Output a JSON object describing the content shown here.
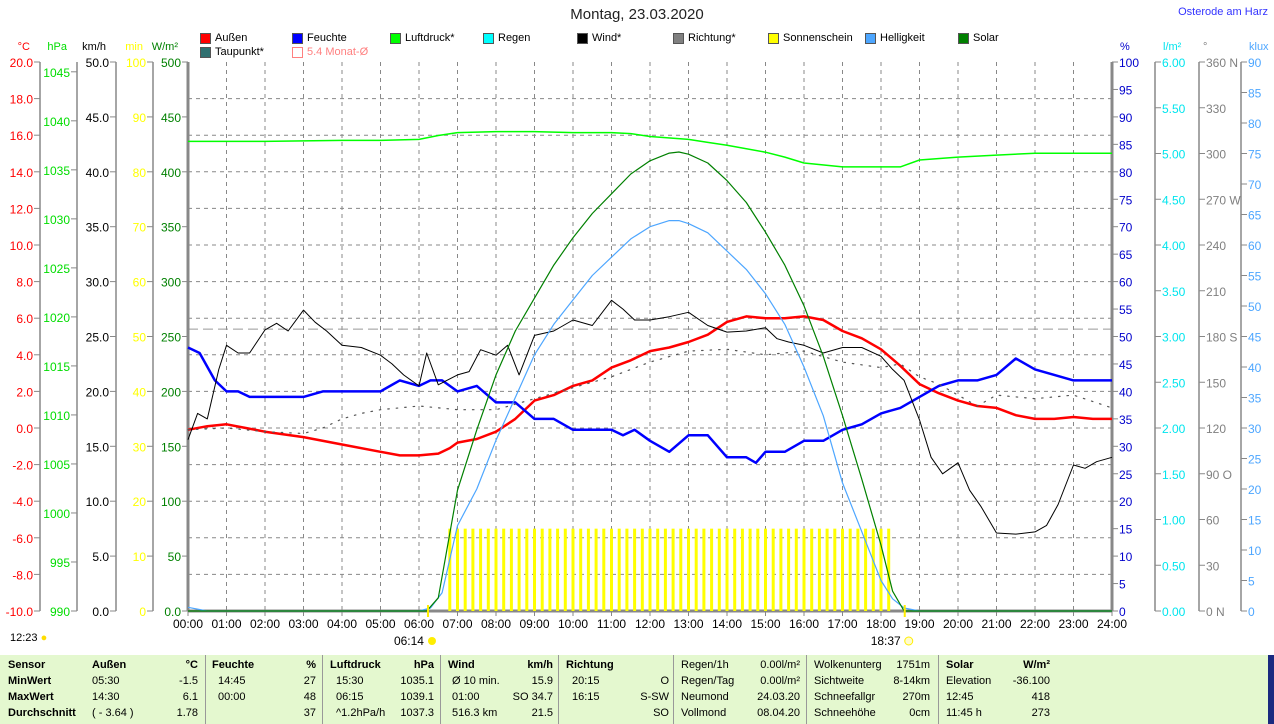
{
  "header": {
    "title": "Montag, 23.03.2020",
    "location": "Osterode am Harz",
    "clock": "12:23"
  },
  "legend": [
    {
      "label": "Außen",
      "color": "#ff0000"
    },
    {
      "label": "Feuchte",
      "color": "#0000ff"
    },
    {
      "label": "Luftdruck*",
      "color": "#00ff00"
    },
    {
      "label": "Regen",
      "color": "#00ffff"
    },
    {
      "label": "Wind*",
      "color": "#000000"
    },
    {
      "label": "Richtung*",
      "color": "#808080"
    },
    {
      "label": "Sonnenschein",
      "color": "#ffff00"
    },
    {
      "label": "Helligkeit",
      "color": "#4da6ff"
    },
    {
      "label": "Solar",
      "color": "#008000"
    },
    {
      "label": "Taupunkt*",
      "color": "#307070"
    },
    {
      "label": "5.4 Monat-Ø",
      "color": "#ff8080"
    }
  ],
  "chart_data": {
    "type": "line",
    "title": "Montag, 23.03.2020",
    "x_ticks": [
      "00:00",
      "01:00",
      "02:00",
      "03:00",
      "04:00",
      "05:00",
      "06:00",
      "07:00",
      "08:00",
      "09:00",
      "10:00",
      "11:00",
      "12:00",
      "13:00",
      "14:00",
      "15:00",
      "16:00",
      "17:00",
      "18:00",
      "19:00",
      "20:00",
      "21:00",
      "22:00",
      "23:00",
      "24:00"
    ],
    "xlim": [
      0,
      24
    ],
    "grid": true,
    "sunrise": "06:14",
    "sunset": "18:37",
    "axes": {
      "temp": {
        "unit": "°C",
        "min": -10,
        "max": 20,
        "ticks": [
          "20.0",
          "18.0",
          "16.0",
          "14.0",
          "12.0",
          "10.0",
          "8.0",
          "6.0",
          "4.0",
          "2.0",
          "0.0",
          "-2.0",
          "-4.0",
          "-6.0",
          "-8.0",
          "-10.0"
        ],
        "color": "#ff0000"
      },
      "pressure": {
        "unit": "hPa",
        "min": 990,
        "max": 1046,
        "ticks": [
          "1045",
          "1040",
          "1035",
          "1030",
          "1025",
          "1020",
          "1015",
          "1010",
          "1005",
          "1000",
          "995",
          "990"
        ],
        "color": "#00dd00"
      },
      "wind": {
        "unit": "km/h",
        "min": 0,
        "max": 50,
        "ticks": [
          "50.0",
          "45.0",
          "40.0",
          "35.0",
          "30.0",
          "25.0",
          "20.0",
          "15.0",
          "10.0",
          "5.0",
          "0.0"
        ],
        "color": "#000000"
      },
      "sun": {
        "unit": "min",
        "min": 0,
        "max": 100,
        "ticks": [
          "100",
          "90",
          "80",
          "70",
          "60",
          "50",
          "40",
          "30",
          "20",
          "10",
          "0"
        ],
        "color": "#ffff00"
      },
      "solar": {
        "unit": "W/m²",
        "min": 0,
        "max": 500,
        "ticks": [
          "500",
          "450",
          "400",
          "350",
          "300",
          "250",
          "200",
          "150",
          "100",
          "50",
          "0.0"
        ],
        "color": "#008000"
      },
      "humidity": {
        "unit": "%",
        "min": 0,
        "max": 100,
        "ticks": [
          "100",
          "95",
          "90",
          "85",
          "80",
          "75",
          "70",
          "65",
          "60",
          "55",
          "50",
          "45",
          "40",
          "35",
          "30",
          "25",
          "20",
          "15",
          "10",
          "5",
          "0"
        ],
        "color": "#0000cc"
      },
      "rain": {
        "unit": "l/m²",
        "min": 0,
        "max": 6,
        "ticks": [
          "6.00",
          "5.50",
          "5.00",
          "4.50",
          "4.00",
          "3.50",
          "3.00",
          "2.50",
          "2.00",
          "1.50",
          "1.00",
          "0.50",
          "0.00"
        ],
        "color": "#00e5ee"
      },
      "direction": {
        "unit": "°",
        "min": 0,
        "max": 360,
        "ticks": [
          "360 N",
          "330",
          "300",
          "270 W",
          "240",
          "210",
          "180 S",
          "150",
          "120",
          "90 O",
          "60",
          "30",
          "0 N"
        ],
        "color": "#808080"
      },
      "lux": {
        "unit": "klux",
        "min": 0,
        "max": 90,
        "ticks": [
          "90",
          "85",
          "80",
          "75",
          "70",
          "65",
          "60",
          "55",
          "50",
          "45",
          "40",
          "35",
          "30",
          "25",
          "20",
          "15",
          "10",
          "5",
          "0"
        ],
        "color": "#4da6ff"
      }
    },
    "month_avg_temp": 5.4,
    "series": [
      {
        "name": "Außen",
        "axis": "temp",
        "color": "#ff0000",
        "width": 2.5,
        "x": [
          0,
          0.5,
          1,
          1.5,
          2,
          3,
          4,
          5,
          5.5,
          6,
          6.5,
          6.8,
          7,
          7.5,
          8,
          8.5,
          9,
          9.5,
          10,
          10.5,
          11,
          11.5,
          12,
          12.5,
          13,
          13.5,
          14,
          14.5,
          15,
          15.5,
          16,
          16.5,
          17,
          17.5,
          18,
          18.5,
          19,
          19.5,
          20,
          20.5,
          21,
          21.5,
          22,
          22.5,
          23,
          23.5,
          24
        ],
        "y": [
          -0.1,
          0.1,
          0.2,
          0,
          -0.2,
          -0.5,
          -0.9,
          -1.3,
          -1.5,
          -1.5,
          -1.4,
          -1.1,
          -0.8,
          -0.6,
          -0.2,
          0.5,
          1.5,
          1.8,
          2.3,
          2.6,
          3.3,
          3.7,
          4.2,
          4.4,
          4.7,
          5.1,
          5.8,
          6.1,
          6.0,
          6.0,
          6.1,
          5.9,
          5.3,
          4.9,
          4.3,
          3.4,
          2.4,
          1.9,
          1.5,
          1.2,
          1.1,
          0.7,
          0.5,
          0.5,
          0.6,
          0.5,
          0.5
        ]
      },
      {
        "name": "Feuchte",
        "axis": "humidity",
        "color": "#0000ff",
        "width": 2.5,
        "x": [
          0,
          0.3,
          0.7,
          1,
          1.3,
          1.6,
          2,
          3,
          3.5,
          4,
          5,
          5.5,
          6,
          6.3,
          6.6,
          7,
          7.5,
          8,
          8.5,
          9,
          9.5,
          10,
          11,
          11.3,
          11.6,
          12,
          12.5,
          13,
          13.5,
          14,
          14.5,
          14.75,
          15,
          15.5,
          16,
          16.5,
          17,
          17.5,
          18,
          18.5,
          19,
          19.5,
          20,
          20.5,
          21,
          21.5,
          22,
          22.5,
          23,
          24
        ],
        "y": [
          48,
          47,
          42,
          40,
          40,
          39,
          39,
          39,
          40,
          40,
          40,
          42,
          41,
          42,
          42,
          40,
          41,
          38,
          38,
          35,
          35,
          33,
          33,
          32,
          33,
          31,
          29,
          32,
          32,
          28,
          28,
          27,
          29,
          29,
          31,
          31,
          33,
          34,
          36,
          37,
          39,
          41,
          42,
          42,
          43,
          46,
          44,
          43,
          42,
          42
        ]
      },
      {
        "name": "Luftdruck*",
        "axis": "pressure",
        "color": "#00ff00",
        "width": 1.5,
        "x": [
          0,
          2,
          4,
          5,
          6,
          6.5,
          7,
          8,
          9,
          10,
          11,
          11.5,
          12,
          13,
          13.5,
          14,
          15,
          15.5,
          16,
          17,
          18,
          18.5,
          19,
          20,
          21,
          22,
          24
        ],
        "y": [
          1037.9,
          1037.9,
          1038.0,
          1038.0,
          1038.1,
          1038.5,
          1038.8,
          1038.9,
          1038.9,
          1038.8,
          1038.8,
          1038.7,
          1038.4,
          1038.1,
          1037.8,
          1037.5,
          1036.8,
          1036.3,
          1035.7,
          1035.3,
          1035.3,
          1035.3,
          1036.0,
          1036.3,
          1036.5,
          1036.7,
          1036.7
        ]
      },
      {
        "name": "Wind*",
        "axis": "wind",
        "color": "#000000",
        "width": 1,
        "x": [
          0,
          0.25,
          0.5,
          0.8,
          1,
          1.3,
          1.6,
          2,
          2.3,
          2.6,
          3,
          3.3,
          3.6,
          4,
          4.5,
          5,
          5.3,
          5.6,
          6,
          6.2,
          6.5,
          7,
          7.3,
          7.6,
          8,
          8.3,
          8.6,
          9,
          9.5,
          10,
          10.5,
          11,
          11.3,
          11.6,
          12,
          12.5,
          13,
          13.5,
          14,
          14.5,
          15,
          15.3,
          15.6,
          16,
          16.5,
          17,
          17.5,
          18,
          18.3,
          18.6,
          19,
          19.3,
          19.6,
          20,
          20.3,
          20.6,
          21,
          21.5,
          22,
          22.3,
          22.6,
          23,
          23.3,
          23.6,
          24
        ],
        "y": [
          15.6,
          18,
          17.5,
          22,
          24.2,
          23.5,
          23.5,
          25.6,
          26.2,
          25.5,
          27.4,
          26.3,
          25.5,
          24.2,
          24,
          23.3,
          22.5,
          21.5,
          20.5,
          23.5,
          20.6,
          21.5,
          21.8,
          23.8,
          23.3,
          24.2,
          21.5,
          25.1,
          25.5,
          26.5,
          26,
          28.3,
          27.5,
          26.5,
          26.5,
          26.8,
          27.2,
          26,
          25.4,
          25.5,
          25.8,
          24.8,
          24.5,
          24.2,
          23.5,
          24,
          24,
          23.2,
          22,
          21,
          17.4,
          14,
          12.5,
          13.5,
          11,
          9.5,
          7.1,
          7,
          7.2,
          7.8,
          9.7,
          13.3,
          13,
          13.6,
          14
        ]
      },
      {
        "name": "Taupunkt*",
        "axis": "temp",
        "color": "#555555",
        "width": 1.2,
        "dotted": true,
        "x": [
          0,
          1,
          2,
          3,
          3.5,
          4,
          4.5,
          5,
          6,
          7,
          8,
          9,
          10,
          11,
          12,
          13,
          14,
          15,
          16,
          17,
          18,
          18.5,
          19,
          19.5,
          20,
          20.5,
          21,
          22,
          23,
          24
        ],
        "y": [
          -0.1,
          0,
          -0.2,
          -0.3,
          0,
          0.5,
          0.8,
          1.0,
          1.2,
          1.0,
          1.0,
          1.6,
          2.2,
          2.8,
          3.6,
          4.2,
          4.3,
          4.0,
          4.2,
          3.6,
          3.3,
          3.5,
          2.8,
          2.4,
          1.8,
          1.2,
          1.8,
          1.6,
          1.8,
          1.1
        ]
      },
      {
        "name": "Helligkeit",
        "axis": "lux",
        "color": "#4da6ff",
        "width": 1.2,
        "x": [
          0,
          0.5,
          6,
          6.3,
          6.6,
          7,
          7.5,
          8,
          8.5,
          9,
          9.5,
          10,
          10.5,
          11,
          11.5,
          12,
          12.5,
          12.75,
          13,
          13.5,
          14,
          14.5,
          15,
          15.5,
          16,
          16.5,
          17,
          17.5,
          18,
          18.3,
          18.6,
          19,
          24
        ],
        "y": [
          0.6,
          0,
          0,
          0.5,
          3,
          14,
          20,
          28,
          35,
          42,
          47,
          51,
          55,
          58,
          61,
          63,
          64,
          64,
          63.5,
          62,
          59,
          56,
          52,
          47,
          40,
          32,
          21,
          13,
          5,
          2,
          0.5,
          0,
          0
        ]
      },
      {
        "name": "Solar",
        "axis": "solar",
        "color": "#008000",
        "width": 1.2,
        "x": [
          0,
          6.2,
          6.5,
          7,
          7.5,
          8,
          8.5,
          9,
          9.5,
          10,
          10.5,
          11,
          11.5,
          12,
          12.5,
          12.75,
          13,
          13.5,
          14,
          14.5,
          15,
          15.5,
          16,
          16.5,
          17,
          17.5,
          18,
          18.3,
          18.6,
          24
        ],
        "y": [
          0,
          0,
          12,
          110,
          165,
          215,
          255,
          285,
          315,
          340,
          362,
          380,
          398,
          410,
          417,
          418,
          416,
          408,
          392,
          372,
          345,
          315,
          278,
          232,
          178,
          120,
          60,
          18,
          0,
          0
        ]
      }
    ],
    "sunshine": {
      "axis": "sun",
      "color": "#ffff00",
      "x_start": 6.8,
      "x_end": 18.3,
      "interval_h": 0.2,
      "value": 15
    }
  },
  "stats": {
    "headers": {
      "sensor": "Sensor",
      "aussen": "Außen",
      "aussen_unit": "°C",
      "feuchte": "Feuchte",
      "feuchte_unit": "%",
      "luftdruck": "Luftdruck",
      "luftdruck_unit": "hPa",
      "wind": "Wind",
      "wind_unit": "km/h",
      "richtung": "Richtung",
      "solar": "Solar",
      "solar_unit": "W/m²"
    },
    "rows": [
      {
        "label": "MinWert",
        "aussen_t": "05:30",
        "aussen_v": "-1.5",
        "feuchte_t": "14:45",
        "feuchte_v": "27",
        "druck_t": "15:30",
        "druck_v": "1035.1",
        "wind_t": "Ø 10 min.",
        "wind_v": "15.9",
        "richt_t": "20:15",
        "richt_v": "O"
      },
      {
        "label": "MaxWert",
        "aussen_t": "14:30",
        "aussen_v": "6.1",
        "feuchte_t": "00:00",
        "feuchte_v": "48",
        "druck_t": "06:15",
        "druck_v": "1039.1",
        "wind_t": "01:00",
        "wind_v": "SO 34.7",
        "richt_t": "16:15",
        "richt_v": "S-SW"
      },
      {
        "label": "Durchschnitt",
        "aussen_t": "( - 3.64 )",
        "aussen_v": "1.78",
        "feuchte_t": "",
        "feuchte_v": "37",
        "druck_t": "^1.2hPa/h",
        "druck_v": "1037.3",
        "wind_t": "516.3 km",
        "wind_v": "21.5",
        "richt_t": "",
        "richt_v": "SO"
      }
    ],
    "misc1": [
      {
        "k": "Regen/1h",
        "v": "0.00l/m²"
      },
      {
        "k": "Regen/Tag",
        "v": "0.00l/m²"
      },
      {
        "k": "Neumond",
        "v": "24.03.20"
      },
      {
        "k": "Vollmond",
        "v": "08.04.20"
      }
    ],
    "misc2": [
      {
        "k": "Wolkenunterg",
        "v": "1751m"
      },
      {
        "k": "Sichtweite",
        "v": "8-14km"
      },
      {
        "k": "Schneefallgr",
        "v": "270m"
      },
      {
        "k": "Schneehöhe",
        "v": "0cm"
      }
    ],
    "solar": [
      {
        "k": "Elevation",
        "v": "-36.100"
      },
      {
        "k": "12:45",
        "v": "418"
      },
      {
        "k": "11:45 h",
        "v": "273"
      }
    ]
  }
}
